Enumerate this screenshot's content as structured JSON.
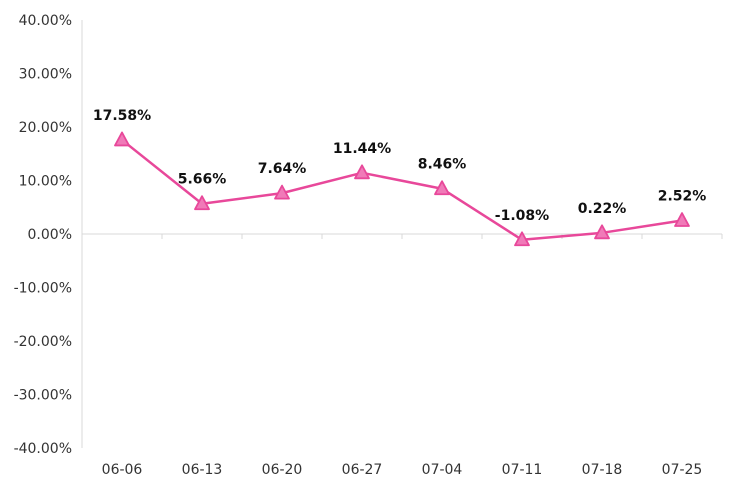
{
  "chart_data": {
    "type": "line",
    "categories": [
      "06-06",
      "06-13",
      "06-20",
      "06-27",
      "07-04",
      "07-11",
      "07-18",
      "07-25"
    ],
    "series": [
      {
        "values": [
          17.58,
          5.66,
          7.64,
          11.44,
          8.46,
          -1.08,
          0.22,
          2.52
        ],
        "data_labels": [
          "17.58%",
          "5.66%",
          "7.64%",
          "11.44%",
          "8.46%",
          "-1.08%",
          "0.22%",
          "2.52%"
        ],
        "marker": "triangle",
        "color": "#e8489a",
        "marker_fill": "#f07ab8"
      }
    ],
    "ylim": [
      -40,
      40
    ],
    "yticks": [
      40,
      30,
      20,
      10,
      0,
      -10,
      -20,
      -30,
      -40
    ],
    "ytick_labels": [
      "40.00%",
      "30.00%",
      "20.00%",
      "10.00%",
      "0.00%",
      "-10.00%",
      "-20.00%",
      "-30.00%",
      "-40.00%"
    ],
    "title": "",
    "xlabel": "",
    "ylabel": "",
    "grid": false,
    "legend": "none",
    "colors": {
      "axis": "#d9d9d9",
      "tick_text": "#333333",
      "label_text": "#111111"
    }
  }
}
